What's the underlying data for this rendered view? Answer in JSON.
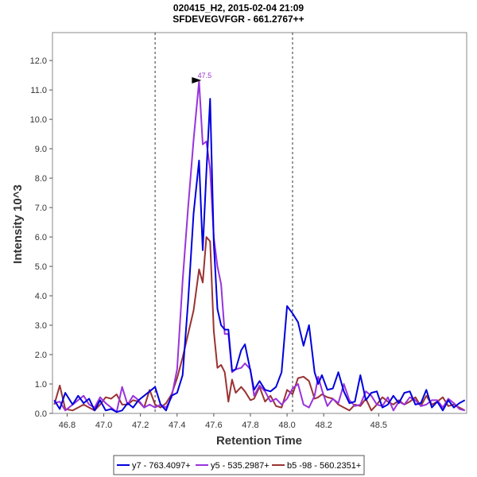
{
  "chart_data": {
    "type": "line",
    "title": "020415_H2, 2015-02-04 21:09",
    "subtitle": "SFDEVEGVFGR - 661.2767++",
    "xlabel": "Retention Time",
    "ylabel": "Intensity 10^3",
    "xlim": [
      46.72,
      48.98
    ],
    "ylim": [
      0,
      12.95
    ],
    "xticks": [
      46.8,
      47.0,
      47.2,
      47.4,
      47.6,
      47.8,
      48.0,
      48.2,
      48.5
    ],
    "xtick_labels": [
      "46.8",
      "47.0",
      "47.2",
      "47.4",
      "47.6",
      "47.8",
      "48.0",
      "48.2",
      "48.5"
    ],
    "yticks": [
      0,
      1,
      2,
      3,
      4,
      5,
      6,
      7,
      8,
      9,
      10,
      11,
      12
    ],
    "ytick_labels": [
      "0.0",
      "1.0",
      "2.0",
      "3.0",
      "4.0",
      "5.0",
      "6.0",
      "7.0",
      "8.0",
      "9.0",
      "10.0",
      "11.0",
      "12.0"
    ],
    "boundaries": [
      47.28,
      48.03
    ],
    "annotation": {
      "label": "47.5",
      "x": 47.55,
      "y": 11.3,
      "color": "#9933cc"
    },
    "legend_position": "bottom-center",
    "series": [
      {
        "name": "y7 - 763.4097+",
        "color": "#0000dd",
        "x": [
          46.73,
          46.76,
          46.79,
          46.83,
          46.86,
          46.89,
          46.92,
          46.95,
          46.98,
          47.01,
          47.04,
          47.07,
          47.1,
          47.13,
          47.16,
          47.19,
          47.22,
          47.25,
          47.28,
          47.31,
          47.34,
          47.37,
          47.4,
          47.43,
          47.46,
          47.49,
          47.52,
          47.54,
          47.56,
          47.58,
          47.6,
          47.62,
          47.64,
          47.66,
          47.68,
          47.7,
          47.72,
          47.75,
          47.77,
          47.8,
          47.82,
          47.85,
          47.88,
          47.91,
          47.94,
          47.97,
          48.0,
          48.03,
          48.06,
          48.09,
          48.12,
          48.15,
          48.17,
          48.19,
          48.22,
          48.25,
          48.28,
          48.31,
          48.34,
          48.37,
          48.4,
          48.43,
          48.46,
          48.49,
          48.52,
          48.55,
          48.58,
          48.61,
          48.64,
          48.67,
          48.7,
          48.73,
          48.76,
          48.79,
          48.82,
          48.85,
          48.88,
          48.91,
          48.94,
          48.97
        ],
        "y": [
          0.45,
          0.15,
          0.7,
          0.3,
          0.6,
          0.35,
          0.5,
          0.1,
          0.45,
          0.1,
          0.15,
          0.05,
          0.1,
          0.35,
          0.2,
          0.45,
          0.6,
          0.75,
          0.9,
          0.3,
          0.1,
          0.6,
          0.7,
          1.3,
          3.8,
          6.8,
          8.6,
          5.55,
          8.2,
          10.7,
          5.8,
          3.55,
          3.0,
          2.85,
          2.85,
          1.45,
          1.5,
          2.15,
          2.35,
          1.45,
          0.8,
          1.1,
          0.8,
          0.75,
          0.9,
          1.4,
          3.65,
          3.4,
          3.1,
          2.3,
          3.0,
          1.4,
          1.0,
          1.3,
          0.8,
          0.85,
          1.4,
          0.75,
          0.35,
          0.4,
          1.3,
          0.45,
          0.7,
          0.75,
          0.2,
          0.3,
          0.6,
          0.35,
          0.7,
          0.75,
          0.3,
          0.35,
          0.8,
          0.2,
          0.4,
          0.1,
          0.45,
          0.2,
          0.35,
          0.45
        ]
      },
      {
        "name": "y5 - 535.2987+",
        "color": "#9933dd",
        "x": [
          46.73,
          46.76,
          46.79,
          46.83,
          46.86,
          46.89,
          46.92,
          46.95,
          46.98,
          47.01,
          47.04,
          47.07,
          47.1,
          47.13,
          47.16,
          47.19,
          47.22,
          47.25,
          47.28,
          47.31,
          47.34,
          47.37,
          47.4,
          47.43,
          47.46,
          47.49,
          47.52,
          47.54,
          47.56,
          47.58,
          47.6,
          47.62,
          47.64,
          47.66,
          47.68,
          47.7,
          47.72,
          47.75,
          47.77,
          47.8,
          47.82,
          47.85,
          47.88,
          47.91,
          47.94,
          47.97,
          48.0,
          48.03,
          48.06,
          48.09,
          48.12,
          48.15,
          48.17,
          48.19,
          48.22,
          48.25,
          48.28,
          48.31,
          48.34,
          48.37,
          48.4,
          48.43,
          48.46,
          48.49,
          48.52,
          48.55,
          48.58,
          48.61,
          48.64,
          48.67,
          48.7,
          48.73,
          48.76,
          48.79,
          48.82,
          48.85,
          48.88,
          48.91,
          48.94,
          48.97
        ],
        "y": [
          0.35,
          0.4,
          0.1,
          0.3,
          0.45,
          0.6,
          0.3,
          0.2,
          0.55,
          0.35,
          0.2,
          0.05,
          0.9,
          0.3,
          0.6,
          0.45,
          0.2,
          0.3,
          0.2,
          0.3,
          0.2,
          0.55,
          1.5,
          4.5,
          7.0,
          9.3,
          11.3,
          9.15,
          9.25,
          8.3,
          6.0,
          5.0,
          4.4,
          2.7,
          2.7,
          1.4,
          1.5,
          1.55,
          1.7,
          1.5,
          0.6,
          0.95,
          0.75,
          0.4,
          0.5,
          0.3,
          0.5,
          0.85,
          1.0,
          0.3,
          0.2,
          0.6,
          1.25,
          0.8,
          0.25,
          0.5,
          0.35,
          1.0,
          0.45,
          0.25,
          0.3,
          0.75,
          0.6,
          0.3,
          0.25,
          0.55,
          0.1,
          0.4,
          0.3,
          0.55,
          0.45,
          0.25,
          0.3,
          0.45,
          0.45,
          0.2,
          0.5,
          0.35,
          0.15,
          0.1
        ]
      },
      {
        "name": "b5 -98 - 560.2351+",
        "color": "#993333",
        "x": [
          46.73,
          46.76,
          46.79,
          46.83,
          46.86,
          46.89,
          46.92,
          46.95,
          46.98,
          47.01,
          47.04,
          47.07,
          47.1,
          47.13,
          47.16,
          47.19,
          47.22,
          47.25,
          47.28,
          47.31,
          47.34,
          47.37,
          47.4,
          47.43,
          47.46,
          47.49,
          47.52,
          47.54,
          47.56,
          47.58,
          47.6,
          47.62,
          47.64,
          47.66,
          47.68,
          47.7,
          47.72,
          47.75,
          47.77,
          47.8,
          47.82,
          47.85,
          47.88,
          47.91,
          47.94,
          47.97,
          48.0,
          48.03,
          48.06,
          48.09,
          48.12,
          48.15,
          48.17,
          48.19,
          48.22,
          48.25,
          48.28,
          48.31,
          48.34,
          48.37,
          48.4,
          48.43,
          48.46,
          48.49,
          48.52,
          48.55,
          48.58,
          48.61,
          48.64,
          48.67,
          48.7,
          48.73,
          48.76,
          48.79,
          48.82,
          48.85,
          48.88,
          48.91,
          48.94,
          48.97
        ],
        "y": [
          0.3,
          0.95,
          0.15,
          0.1,
          0.2,
          0.3,
          0.2,
          0.1,
          0.3,
          0.55,
          0.5,
          0.65,
          0.3,
          0.3,
          0.45,
          0.4,
          0.2,
          0.8,
          0.3,
          0.2,
          0.35,
          0.65,
          1.2,
          1.9,
          2.7,
          3.5,
          4.9,
          4.45,
          6.0,
          5.85,
          2.8,
          1.55,
          1.65,
          1.4,
          0.4,
          1.15,
          0.7,
          0.9,
          0.75,
          0.45,
          0.5,
          0.9,
          0.4,
          0.6,
          0.25,
          0.2,
          0.8,
          0.65,
          1.2,
          1.25,
          1.1,
          0.5,
          0.55,
          0.65,
          0.55,
          0.5,
          0.3,
          0.2,
          0.1,
          0.3,
          0.25,
          0.5,
          0.1,
          0.3,
          0.55,
          0.4,
          0.3,
          0.45,
          0.3,
          0.4,
          0.55,
          0.25,
          0.6,
          0.3,
          0.4,
          0.55,
          0.25,
          0.3,
          0.2,
          0.1
        ]
      }
    ]
  }
}
